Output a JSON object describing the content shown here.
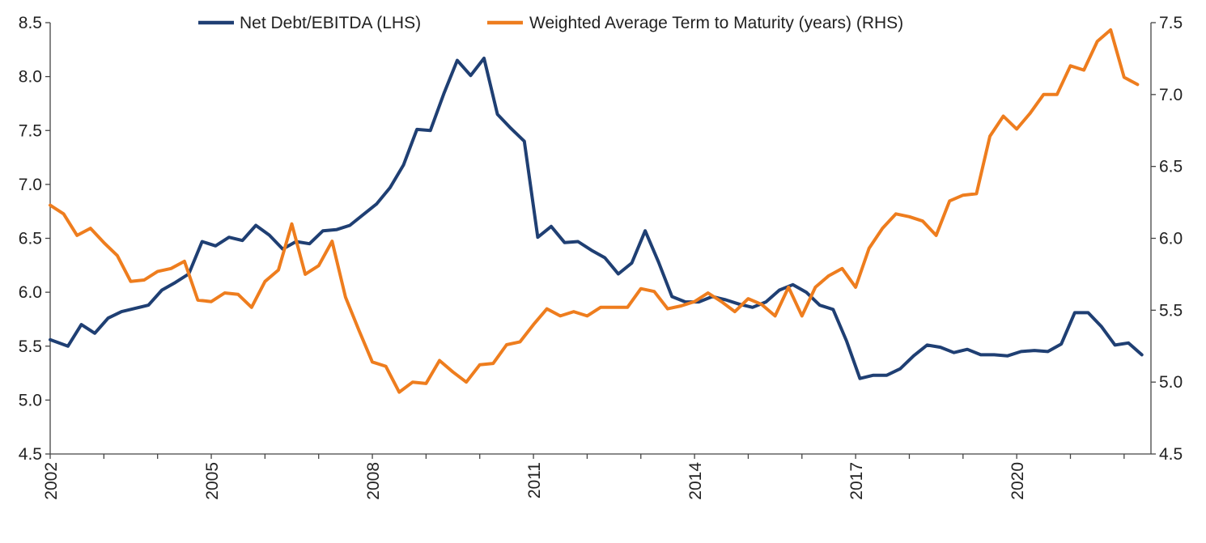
{
  "chart_data": {
    "type": "line",
    "title": "",
    "xlabel": "",
    "legend_position": "top-center",
    "grid": false,
    "x_range": [
      2002.0,
      2022.5
    ],
    "x_ticks": [
      "2002",
      "2005",
      "2008",
      "2011",
      "2014",
      "2017",
      "2020"
    ],
    "x_tick_values": [
      2002,
      2005,
      2008,
      2011,
      2014,
      2017,
      2020
    ],
    "y_left": {
      "label": "",
      "range": [
        4.5,
        8.5
      ],
      "ticks": [
        "4.5",
        "5.0",
        "5.5",
        "6.0",
        "6.5",
        "7.0",
        "7.5",
        "8.0",
        "8.5"
      ],
      "tick_values": [
        4.5,
        5.0,
        5.5,
        6.0,
        6.5,
        7.0,
        7.5,
        8.0,
        8.5
      ]
    },
    "y_right": {
      "label": "",
      "range": [
        4.5,
        7.5
      ],
      "ticks": [
        "4.5",
        "5.0",
        "5.5",
        "6.0",
        "6.5",
        "7.0",
        "7.5"
      ],
      "tick_values": [
        4.5,
        5.0,
        5.5,
        6.0,
        6.5,
        7.0,
        7.5
      ]
    },
    "series": [
      {
        "name": "Net Debt/EBITDA (LHS)",
        "axis": "left",
        "color": "#1f3f73",
        "x": [
          2002.0,
          2002.33,
          2002.58,
          2002.83,
          2003.08,
          2003.33,
          2003.58,
          2003.83,
          2004.08,
          2004.33,
          2004.58,
          2004.83,
          2005.08,
          2005.33,
          2005.58,
          2005.83,
          2006.08,
          2006.33,
          2006.58,
          2006.83,
          2007.08,
          2007.33,
          2007.58,
          2007.83,
          2008.08,
          2008.33,
          2008.58,
          2008.83,
          2009.08,
          2009.33,
          2009.58,
          2009.83,
          2010.08,
          2010.33,
          2010.58,
          2010.83,
          2011.08,
          2011.33,
          2011.58,
          2011.83,
          2012.08,
          2012.33,
          2012.58,
          2012.83,
          2013.08,
          2013.33,
          2013.58,
          2013.83,
          2014.08,
          2014.33,
          2014.58,
          2014.83,
          2015.08,
          2015.33,
          2015.58,
          2015.83,
          2016.08,
          2016.33,
          2016.58,
          2016.83,
          2017.08,
          2017.33,
          2017.58,
          2017.83,
          2018.08,
          2018.33,
          2018.58,
          2018.83,
          2019.08,
          2019.33,
          2019.58,
          2019.83,
          2020.08,
          2020.33,
          2020.58,
          2020.83,
          2021.08,
          2021.33,
          2021.58,
          2021.83,
          2022.08,
          2022.33
        ],
        "values": [
          5.56,
          5.5,
          5.7,
          5.62,
          5.76,
          5.82,
          5.85,
          5.88,
          6.02,
          6.09,
          6.17,
          6.47,
          6.43,
          6.51,
          6.48,
          6.62,
          6.53,
          6.4,
          6.47,
          6.45,
          6.57,
          6.58,
          6.62,
          6.72,
          6.82,
          6.97,
          7.18,
          7.51,
          7.5,
          7.84,
          8.15,
          8.01,
          8.17,
          7.65,
          7.52,
          7.4,
          6.51,
          6.61,
          6.46,
          6.47,
          6.39,
          6.32,
          6.17,
          6.27,
          6.57,
          6.28,
          5.96,
          5.91,
          5.91,
          5.96,
          5.93,
          5.89,
          5.86,
          5.91,
          6.02,
          6.07,
          6.0,
          5.88,
          5.84,
          5.55,
          5.2,
          5.23,
          5.23,
          5.29,
          5.41,
          5.51,
          5.49,
          5.44,
          5.47,
          5.42,
          5.42,
          5.41,
          5.45,
          5.46,
          5.45,
          5.52,
          5.81,
          5.81,
          5.68,
          5.51,
          5.53,
          5.42
        ]
      },
      {
        "name": "Weighted Average Term to Maturity (years) (RHS)",
        "axis": "right",
        "color": "#ee7d1e",
        "x": [
          2002.0,
          2002.25,
          2002.5,
          2002.75,
          2003.0,
          2003.25,
          2003.5,
          2003.75,
          2004.0,
          2004.25,
          2004.5,
          2004.75,
          2005.0,
          2005.25,
          2005.5,
          2005.75,
          2006.0,
          2006.25,
          2006.5,
          2006.75,
          2007.0,
          2007.25,
          2007.5,
          2007.75,
          2008.0,
          2008.25,
          2008.5,
          2008.75,
          2009.0,
          2009.25,
          2009.5,
          2009.75,
          2010.0,
          2010.25,
          2010.5,
          2010.75,
          2011.0,
          2011.25,
          2011.5,
          2011.75,
          2012.0,
          2012.25,
          2012.5,
          2012.75,
          2013.0,
          2013.25,
          2013.5,
          2013.75,
          2014.0,
          2014.25,
          2014.5,
          2014.75,
          2015.0,
          2015.25,
          2015.5,
          2015.75,
          2016.0,
          2016.25,
          2016.5,
          2016.75,
          2017.0,
          2017.25,
          2017.5,
          2017.75,
          2018.0,
          2018.25,
          2018.5,
          2018.75,
          2019.0,
          2019.25,
          2019.5,
          2019.75,
          2020.0,
          2020.25,
          2020.5,
          2020.75,
          2021.0,
          2021.25,
          2021.5,
          2021.75,
          2022.0,
          2022.25
        ],
        "values": [
          6.23,
          6.17,
          6.02,
          6.07,
          5.97,
          5.88,
          5.7,
          5.71,
          5.77,
          5.79,
          5.84,
          5.57,
          5.56,
          5.62,
          5.61,
          5.52,
          5.7,
          5.78,
          6.1,
          5.75,
          5.81,
          5.98,
          5.59,
          5.36,
          5.14,
          5.11,
          4.93,
          5.0,
          4.99,
          5.15,
          5.07,
          5.0,
          5.12,
          5.13,
          5.26,
          5.28,
          5.4,
          5.51,
          5.46,
          5.49,
          5.46,
          5.52,
          5.52,
          5.52,
          5.65,
          5.63,
          5.51,
          5.53,
          5.56,
          5.62,
          5.56,
          5.49,
          5.58,
          5.54,
          5.46,
          5.66,
          5.46,
          5.66,
          5.74,
          5.79,
          5.66,
          5.93,
          6.07,
          6.17,
          6.15,
          6.12,
          6.02,
          6.26,
          6.3,
          6.31,
          6.71,
          6.85,
          6.76,
          6.87,
          7.0,
          7.0,
          7.2,
          7.17,
          7.37,
          7.45,
          7.12,
          7.07
        ]
      }
    ]
  }
}
